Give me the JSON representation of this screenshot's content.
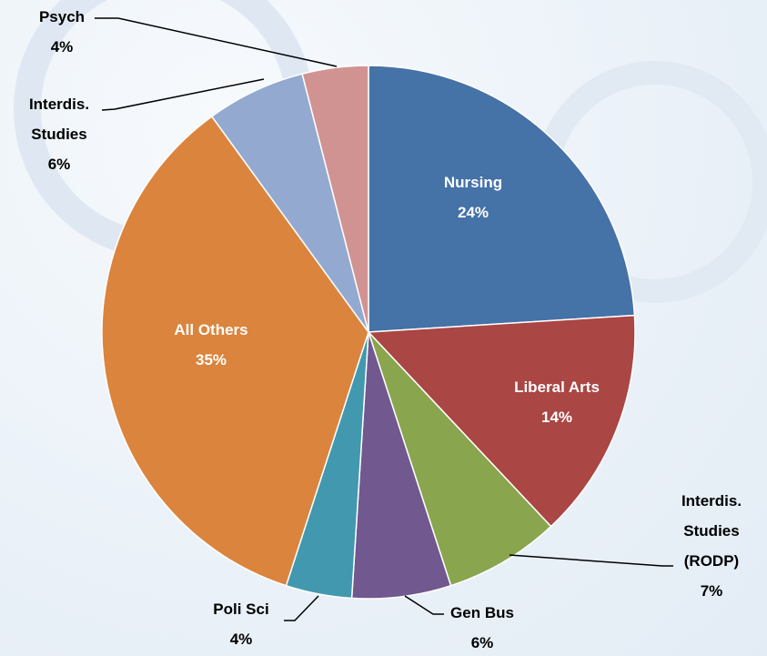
{
  "chart_data": {
    "type": "pie",
    "categories": [
      "Nursing",
      "Liberal Arts",
      "Interdis. Studies (RODP)",
      "Gen Bus",
      "Poli Sci",
      "All Others",
      "Interdis. Studies",
      "Psych"
    ],
    "values": [
      24,
      14,
      7,
      6,
      4,
      35,
      6,
      4
    ],
    "value_labels": [
      "24%",
      "14%",
      "7%",
      "6%",
      "4%",
      "35%",
      "6%",
      "4%"
    ],
    "colors": [
      "#4572a7",
      "#aa4643",
      "#89a54e",
      "#71588f",
      "#4198af",
      "#db843d",
      "#93a9cf",
      "#d19392"
    ]
  }
}
